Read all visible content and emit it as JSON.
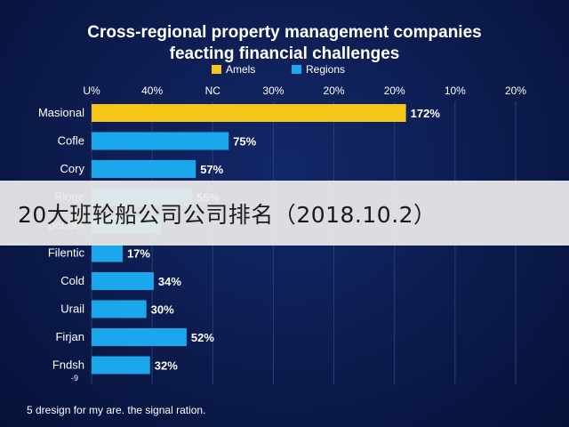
{
  "overlay_caption": "20大班轮船公司公司排名（2018.10.2）",
  "footnote": "5 dresign for my are. the signal ration.",
  "colors": {
    "background": "#0d1b4a",
    "accent_gold": "#f5c518",
    "accent_blue": "#1aa7ec",
    "text": "#ffffff",
    "grid": "#2a3d7a"
  },
  "chart_data": {
    "type": "bar",
    "orientation": "horizontal",
    "title": "Cross-regional property management companies feacting financial challenges",
    "legend": {
      "placement": "top-right",
      "entries": [
        {
          "name": "Amels",
          "color": "#f5c518"
        },
        {
          "name": "Regions",
          "color": "#1aa7ec"
        }
      ]
    },
    "x_tick_labels": [
      "U%",
      "40%",
      "NC",
      "30%",
      "20%",
      "20%",
      "10%",
      "20%"
    ],
    "xlim": [
      0,
      232
    ],
    "grid": true,
    "categories": [
      "Masional",
      "Cofle",
      "Cory",
      "Rioge",
      "peoper",
      "Filentic",
      "Cold",
      "Urail",
      "Firjan",
      "Fndsh"
    ],
    "values": [
      172,
      75,
      57,
      55,
      38,
      17,
      34,
      30,
      52,
      32
    ],
    "value_labels": [
      "172%",
      "75%",
      "57%",
      "55%",
      "",
      "17%",
      "34%",
      "30%",
      "52%",
      "32%"
    ],
    "series_index": [
      0,
      1,
      1,
      1,
      1,
      1,
      1,
      1,
      1,
      1
    ],
    "trailing_tick": "-9"
  }
}
